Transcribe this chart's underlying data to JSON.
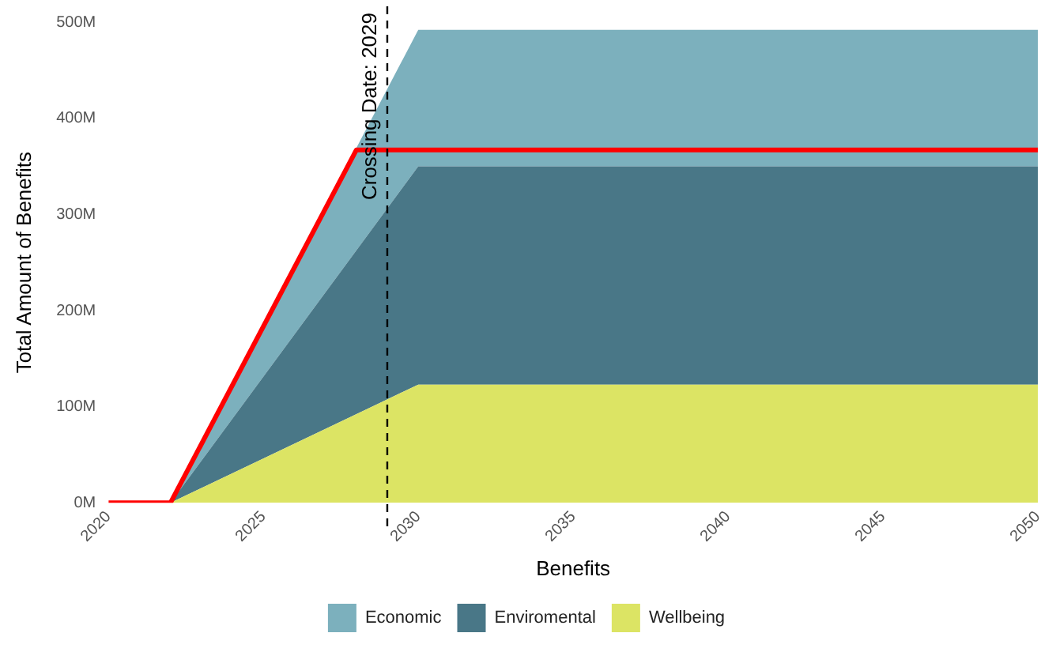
{
  "chart_data": {
    "type": "area",
    "stacked": true,
    "xlabel": "Benefits",
    "ylabel": "Total Amount of Benefits",
    "x": [
      2022,
      2030,
      2050
    ],
    "series": [
      {
        "name": "Wellbeing",
        "color": "#dce464",
        "values": [
          0,
          123,
          123
        ]
      },
      {
        "name": "Enviromental",
        "color": "#497787",
        "values": [
          0,
          227,
          227
        ]
      },
      {
        "name": "Economic",
        "color": "#7cb0bd",
        "values": [
          0,
          142,
          142
        ]
      },
      {
        "type": "line",
        "color": "#ff0000",
        "x": [
          2020,
          2022,
          2028,
          2050
        ],
        "values": [
          0,
          0,
          367,
          367
        ]
      }
    ],
    "xlim": [
      2020,
      2050
    ],
    "xticks": [
      2020,
      2025,
      2030,
      2035,
      2040,
      2045,
      2050
    ],
    "ylim": [
      0,
      500
    ],
    "yticks": [
      {
        "value": 0,
        "label": "0M"
      },
      {
        "value": 100,
        "label": "100M"
      },
      {
        "value": 200,
        "label": "200M"
      },
      {
        "value": 300,
        "label": "300M"
      },
      {
        "value": 400,
        "label": "400M"
      },
      {
        "value": 500,
        "label": "500M"
      }
    ],
    "ref_lines": [
      {
        "axis": "x",
        "value": 2029,
        "label": "Crossing Date: 2029",
        "color": "#000000",
        "line_style": "dashed"
      }
    ],
    "grid": false,
    "legend": "bottom"
  }
}
